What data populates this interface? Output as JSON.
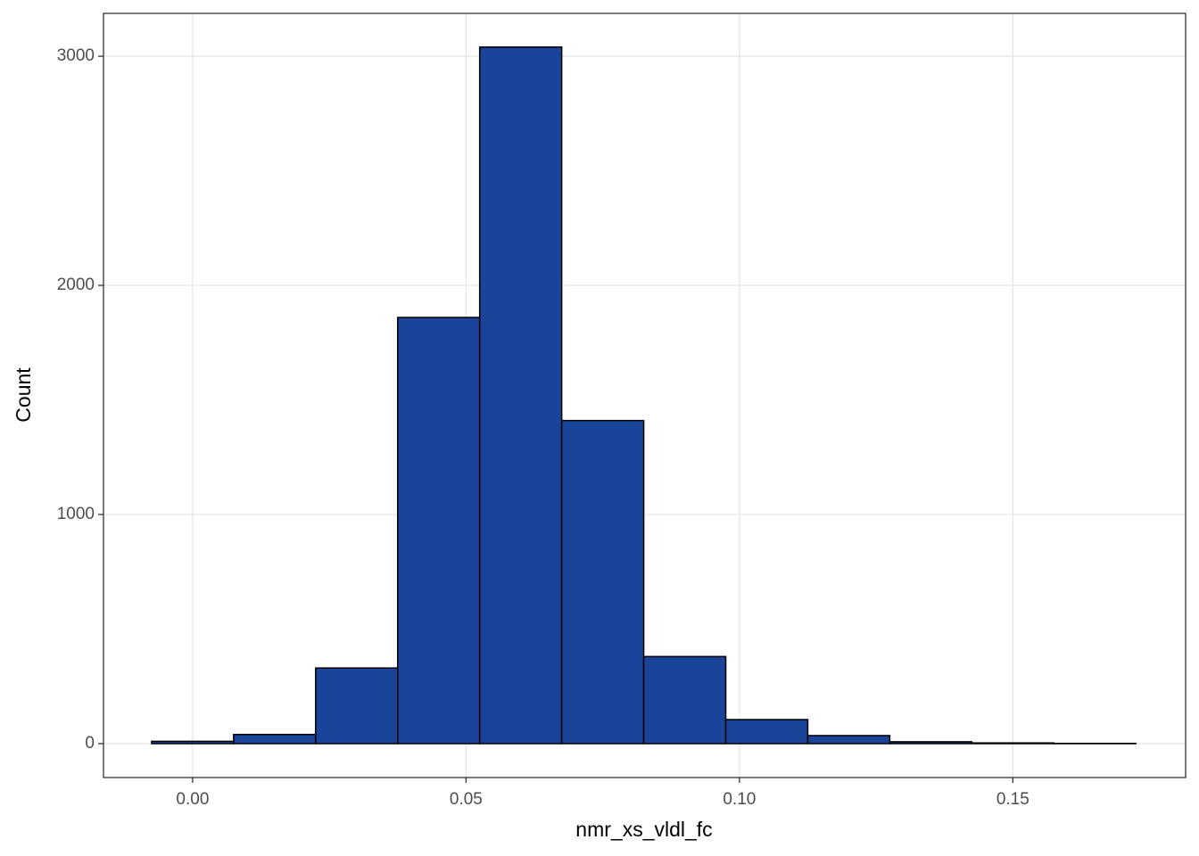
{
  "chart_data": {
    "type": "histogram",
    "x_label": "nmr_xs_vldl_fc",
    "y_label": "Count",
    "bins": [
      -0.0075,
      0.0075,
      0.0225,
      0.0375,
      0.0525,
      0.0675,
      0.0825,
      0.0975,
      0.1125,
      0.1275,
      0.1425,
      0.1575,
      0.1725
    ],
    "values": [
      10,
      40,
      330,
      1860,
      3040,
      1410,
      380,
      105,
      35,
      8,
      3,
      1
    ],
    "color": "#1a4499",
    "edge_color": "#000000",
    "xlim": [
      -0.0163,
      0.1816
    ],
    "xticks": [
      {
        "value": 0,
        "label": "0.00"
      },
      {
        "value": 0.05,
        "label": "0.05"
      },
      {
        "value": 0.1,
        "label": "0.10"
      },
      {
        "value": 0.15,
        "label": "0.15"
      }
    ],
    "ylim": [
      -148,
      3187
    ],
    "yticks": [
      0,
      1000,
      2000,
      3000
    ],
    "grid": true
  }
}
